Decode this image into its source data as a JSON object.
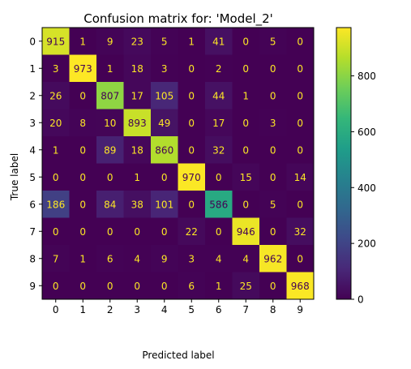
{
  "chart_data": {
    "type": "heatmap",
    "title": "Confusion matrix for: 'Model_2'",
    "xlabel": "Predicted label",
    "ylabel": "True label",
    "x_categories": [
      "0",
      "1",
      "2",
      "3",
      "4",
      "5",
      "6",
      "7",
      "8",
      "9"
    ],
    "y_categories": [
      "0",
      "1",
      "2",
      "3",
      "4",
      "5",
      "6",
      "7",
      "8",
      "9"
    ],
    "matrix": [
      [
        915,
        1,
        9,
        23,
        5,
        1,
        41,
        0,
        5,
        0
      ],
      [
        3,
        973,
        1,
        18,
        3,
        0,
        2,
        0,
        0,
        0
      ],
      [
        26,
        0,
        807,
        17,
        105,
        0,
        44,
        1,
        0,
        0
      ],
      [
        20,
        8,
        10,
        893,
        49,
        0,
        17,
        0,
        3,
        0
      ],
      [
        1,
        0,
        89,
        18,
        860,
        0,
        32,
        0,
        0,
        0
      ],
      [
        0,
        0,
        0,
        1,
        0,
        970,
        0,
        15,
        0,
        14
      ],
      [
        186,
        0,
        84,
        38,
        101,
        0,
        586,
        0,
        5,
        0
      ],
      [
        0,
        0,
        0,
        0,
        0,
        22,
        0,
        946,
        0,
        32
      ],
      [
        7,
        1,
        6,
        4,
        9,
        3,
        4,
        4,
        962,
        0
      ],
      [
        0,
        0,
        0,
        0,
        0,
        6,
        1,
        25,
        0,
        968
      ]
    ],
    "colormap": "viridis",
    "value_range": [
      0,
      973
    ],
    "colorbar_ticks": [
      "0",
      "200",
      "400",
      "600",
      "800"
    ],
    "grid": false,
    "colorbar_position": "right"
  }
}
